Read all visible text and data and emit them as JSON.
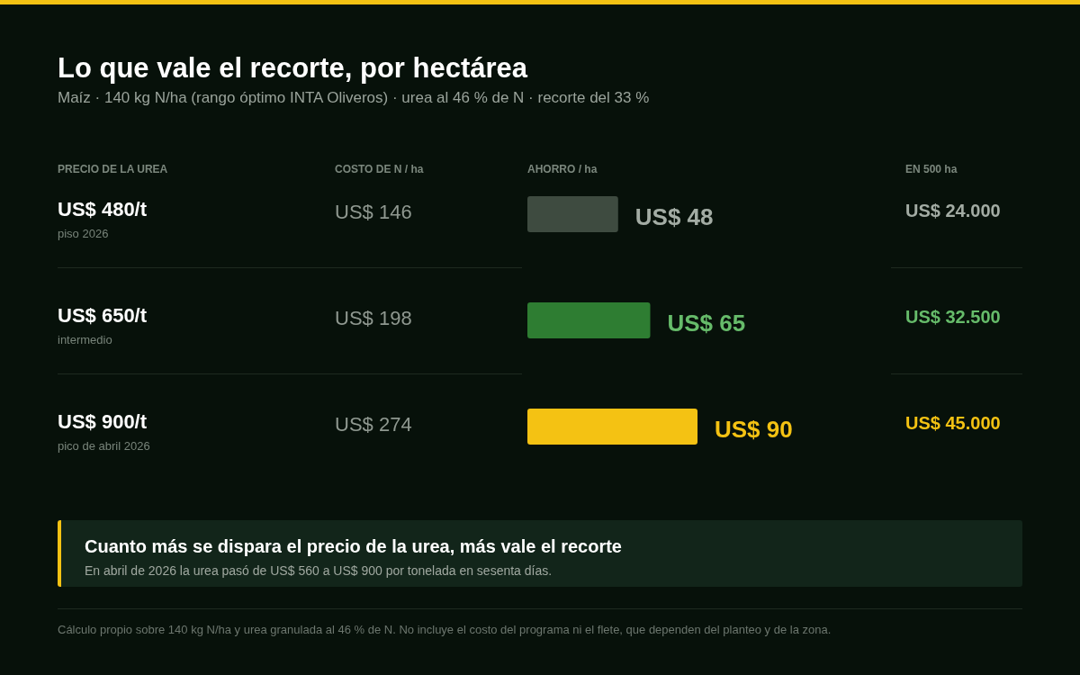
{
  "chart_data": {
    "type": "bar",
    "orientation": "horizontal",
    "title": "Lo que vale el recorte, por hectárea",
    "subtitle": "Maíz · 140 kg N/ha (rango óptimo INTA Oliveros) · urea al 46 % de N · recorte del 33 %",
    "ylabel": "PRECIO DE LA UREA",
    "xlabel": "AHORRO / ha",
    "categories": [
      "US$ 480/t",
      "US$ 650/t",
      "US$ 900/t"
    ],
    "values": [
      48,
      65,
      90
    ],
    "colors": [
      "#3e4b40",
      "#2e7d32",
      "#f4c213"
    ],
    "value_labels": [
      "US$ 48",
      "US$ 65",
      "US$ 90"
    ],
    "annotations": [
      "COSTO DE N / ha",
      "EN 500 ha",
      "Cuanto más se dispara el precio de la urea, más vale el recorte",
      "En abril de 2026 la urea pasó de US$ 560 a US$ 900 por tonelada en sesenta días.",
      "Cálculo propio sobre 140 kg N/ha y urea granulada al 46 % de N. No incluye el costo del programa ni el flete, que dependen del planteo y de la zona.",
      "piso 2026",
      "US$ 146",
      "US$ 24.000",
      "intermedio",
      "US$ 198",
      "US$ 32.500",
      "pico de abril 2026",
      "US$ 274",
      "US$ 45.000"
    ]
  }
}
